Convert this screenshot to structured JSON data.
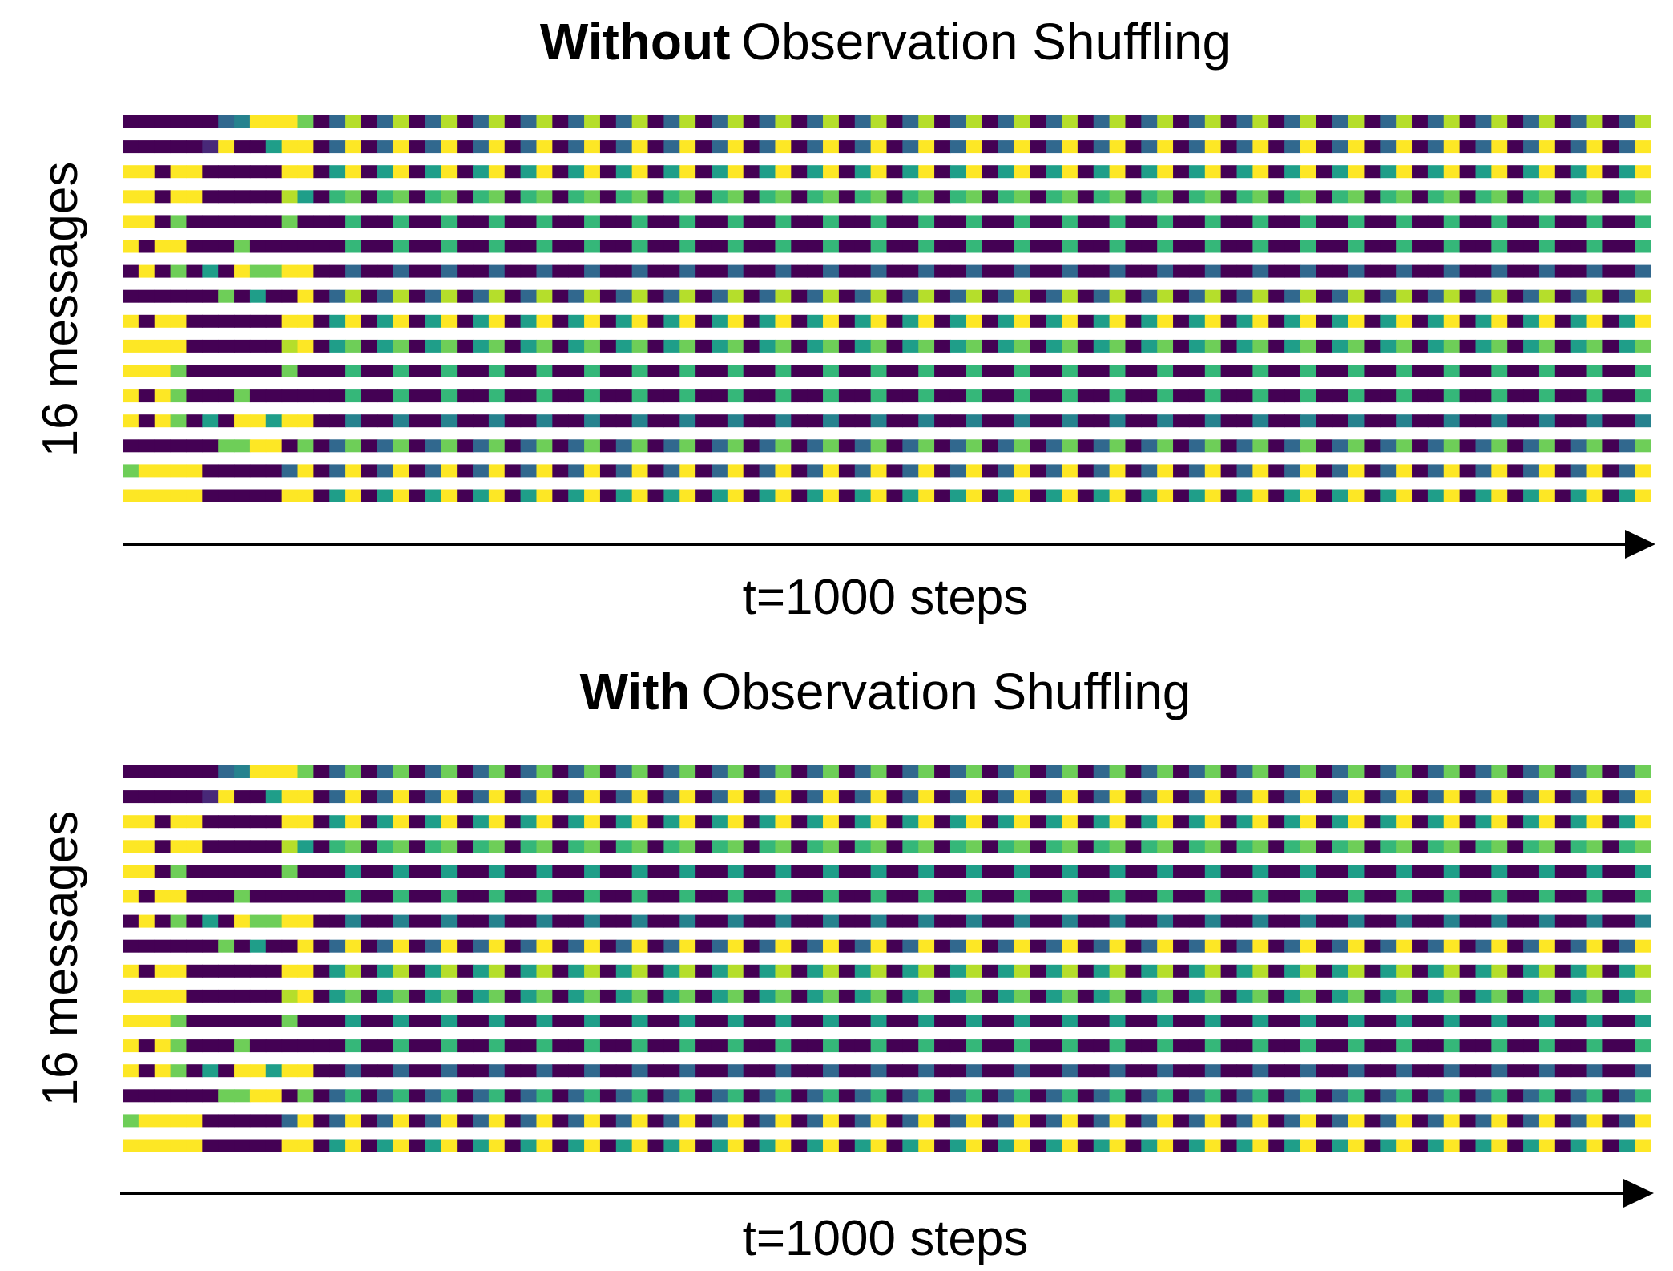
{
  "colors": {
    "palette": [
      "#440154",
      "#482878",
      "#3e4989",
      "#31688e",
      "#26828e",
      "#1f9e89",
      "#35b779",
      "#6ece58",
      "#b5de2b",
      "#fde725"
    ],
    "axis": "#000000"
  },
  "chart_data": [
    {
      "type": "heatmap",
      "title_bold": "Without",
      "title_rest": "Observation Shuffling",
      "ylabel": "16 messages",
      "xlabel": "t=1000 steps",
      "value_scale": "levels 0-9 (viridis, dark purple to yellow)",
      "columns": 96,
      "rows": [
        {
          "start": "000000349997",
          "cycle": "038",
          "cycles": 28
        },
        {
          "start": "000001900599",
          "cycle": "039",
          "cycles": 28
        },
        {
          "start": "990990000099",
          "cycle": "059",
          "cycles": 28
        },
        {
          "start": "990990000085",
          "cycle": "067",
          "cycles": 28
        },
        {
          "start": "990700000070",
          "cycle": "006",
          "cycles": 28
        },
        {
          "start": "909900070000",
          "cycle": "006",
          "cycles": 28
        },
        {
          "start": "090705097799",
          "cycle": "003",
          "cycles": 28
        },
        {
          "start": "000000705009",
          "cycle": "038",
          "cycles": 28
        },
        {
          "start": "909900000099",
          "cycle": "059",
          "cycles": 28
        },
        {
          "start": "999900000089",
          "cycle": "057",
          "cycles": 28
        },
        {
          "start": "999700000070",
          "cycle": "006",
          "cycles": 28
        },
        {
          "start": "909700070000",
          "cycle": "006",
          "cycles": 28
        },
        {
          "start": "909705099599",
          "cycle": "004",
          "cycles": 28
        },
        {
          "start": "000000779907",
          "cycle": "037",
          "cycles": 28
        },
        {
          "start": "799990000039",
          "cycle": "039",
          "cycles": 28
        },
        {
          "start": "999990000099",
          "cycle": "059",
          "cycles": 28
        }
      ]
    },
    {
      "type": "heatmap",
      "title_bold": "With",
      "title_rest": "Observation Shuffling",
      "ylabel": "16 messages",
      "xlabel": "t=1000 steps",
      "value_scale": "levels 0-9 (viridis, dark purple to yellow)",
      "columns": 96,
      "rows": [
        {
          "start": "000000349997",
          "cycle": "037",
          "cycles": 28
        },
        {
          "start": "000001900599",
          "cycle": "039",
          "cycles": 28
        },
        {
          "start": "990990000099",
          "cycle": "059",
          "cycles": 28
        },
        {
          "start": "990990000085",
          "cycle": "067",
          "cycles": 28
        },
        {
          "start": "990700000070",
          "cycle": "005",
          "cycles": 28
        },
        {
          "start": "909900070000",
          "cycle": "006",
          "cycles": 28
        },
        {
          "start": "090705097799",
          "cycle": "004",
          "cycles": 28
        },
        {
          "start": "000000705009",
          "cycle": "039",
          "cycles": 28
        },
        {
          "start": "909900000099",
          "cycle": "058",
          "cycles": 28
        },
        {
          "start": "999900000089",
          "cycle": "057",
          "cycles": 28
        },
        {
          "start": "999700000070",
          "cycle": "005",
          "cycles": 28
        },
        {
          "start": "909700070000",
          "cycle": "006",
          "cycles": 28
        },
        {
          "start": "909705099599",
          "cycle": "003",
          "cycles": 28
        },
        {
          "start": "000000779907",
          "cycle": "036",
          "cycles": 28
        },
        {
          "start": "799990000039",
          "cycle": "039",
          "cycles": 28
        },
        {
          "start": "999990000099",
          "cycle": "059",
          "cycles": 28
        }
      ]
    }
  ]
}
